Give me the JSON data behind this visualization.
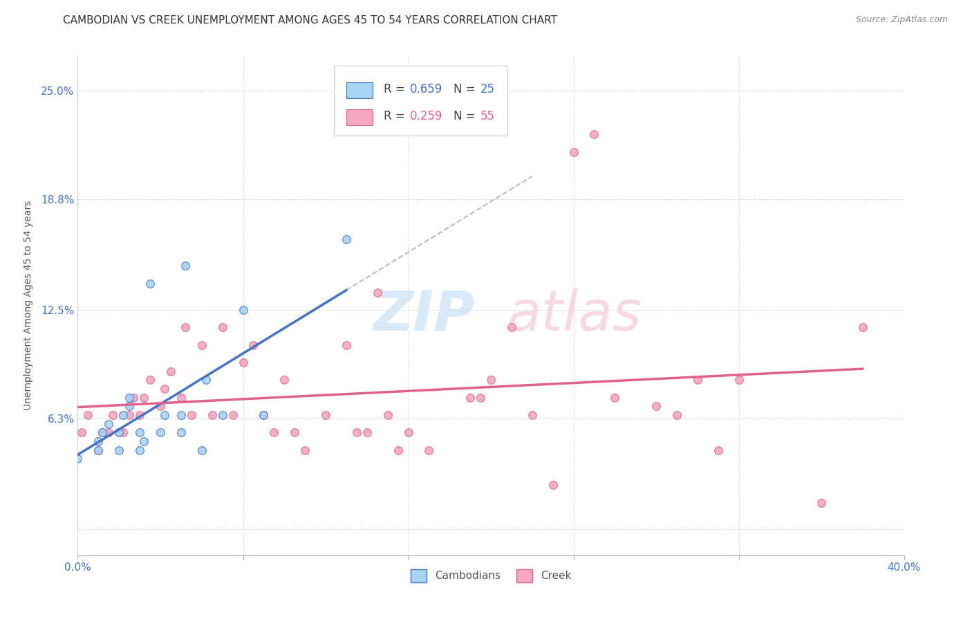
{
  "title": "CAMBODIAN VS CREEK UNEMPLOYMENT AMONG AGES 45 TO 54 YEARS CORRELATION CHART",
  "source_text": "Source: ZipAtlas.com",
  "ylabel": "Unemployment Among Ages 45 to 54 years",
  "xlim": [
    0.0,
    40.0
  ],
  "ylim": [
    -1.5,
    27.0
  ],
  "xticks": [
    0.0,
    8.0,
    16.0,
    24.0,
    32.0,
    40.0
  ],
  "xticklabels": [
    "0.0%",
    "",
    "",
    "",
    "",
    "40.0%"
  ],
  "ytick_positions": [
    0.0,
    6.3,
    12.5,
    18.8,
    25.0
  ],
  "ytick_labels": [
    "",
    "6.3%",
    "12.5%",
    "18.8%",
    "25.0%"
  ],
  "background_color": "#ffffff",
  "grid_color": "#dddddd",
  "cambodian_color": "#a8d4f5",
  "creek_color": "#f5a8c0",
  "cambodian_line_color": "#4472c4",
  "creek_line_color": "#e06090",
  "legend_R_cambodian": "0.659",
  "legend_N_cambodian": "25",
  "legend_R_creek": "0.259",
  "legend_N_creek": "55",
  "title_fontsize": 11,
  "axis_label_fontsize": 10,
  "tick_fontsize": 11,
  "source_fontsize": 9,
  "marker_size": 70,
  "cambodian_x": [
    0.0,
    1.0,
    1.0,
    1.2,
    1.5,
    2.0,
    2.0,
    2.2,
    2.5,
    2.5,
    3.0,
    3.0,
    3.2,
    3.5,
    4.0,
    4.2,
    5.0,
    5.0,
    5.2,
    6.0,
    6.2,
    7.0,
    8.0,
    9.0,
    13.0
  ],
  "cambodian_y": [
    4.0,
    4.5,
    5.0,
    5.5,
    6.0,
    4.5,
    5.5,
    6.5,
    7.0,
    7.5,
    4.5,
    5.5,
    5.0,
    14.0,
    5.5,
    6.5,
    5.5,
    6.5,
    15.0,
    4.5,
    8.5,
    6.5,
    12.5,
    6.5,
    16.5
  ],
  "creek_x": [
    0.2,
    0.5,
    1.0,
    1.2,
    1.5,
    1.7,
    2.0,
    2.2,
    2.5,
    2.7,
    3.0,
    3.2,
    3.5,
    4.0,
    4.2,
    4.5,
    5.0,
    5.2,
    5.5,
    6.0,
    6.5,
    7.0,
    7.5,
    8.0,
    8.5,
    9.0,
    9.5,
    10.0,
    10.5,
    11.0,
    12.0,
    13.0,
    13.5,
    14.0,
    15.0,
    15.5,
    16.0,
    17.0,
    19.0,
    19.5,
    20.0,
    21.0,
    22.0,
    23.0,
    24.0,
    25.0,
    26.0,
    28.0,
    29.0,
    30.0,
    31.0,
    32.0,
    36.0,
    38.0,
    14.5
  ],
  "creek_y": [
    5.5,
    6.5,
    4.5,
    5.5,
    5.5,
    6.5,
    5.5,
    5.5,
    6.5,
    7.5,
    6.5,
    7.5,
    8.5,
    7.0,
    8.0,
    9.0,
    7.5,
    11.5,
    6.5,
    10.5,
    6.5,
    11.5,
    6.5,
    9.5,
    10.5,
    6.5,
    5.5,
    8.5,
    5.5,
    4.5,
    6.5,
    10.5,
    5.5,
    5.5,
    6.5,
    4.5,
    5.5,
    4.5,
    7.5,
    7.5,
    8.5,
    11.5,
    6.5,
    2.5,
    21.5,
    22.5,
    7.5,
    7.0,
    6.5,
    8.5,
    4.5,
    8.5,
    1.5,
    11.5,
    13.5
  ],
  "cam_trend_x_start": 0.0,
  "cam_trend_x_end": 13.0,
  "cam_dash_x_start": 13.0,
  "cam_dash_x_end": 22.0,
  "creek_trend_x_start": 0.0,
  "creek_trend_x_end": 38.0
}
